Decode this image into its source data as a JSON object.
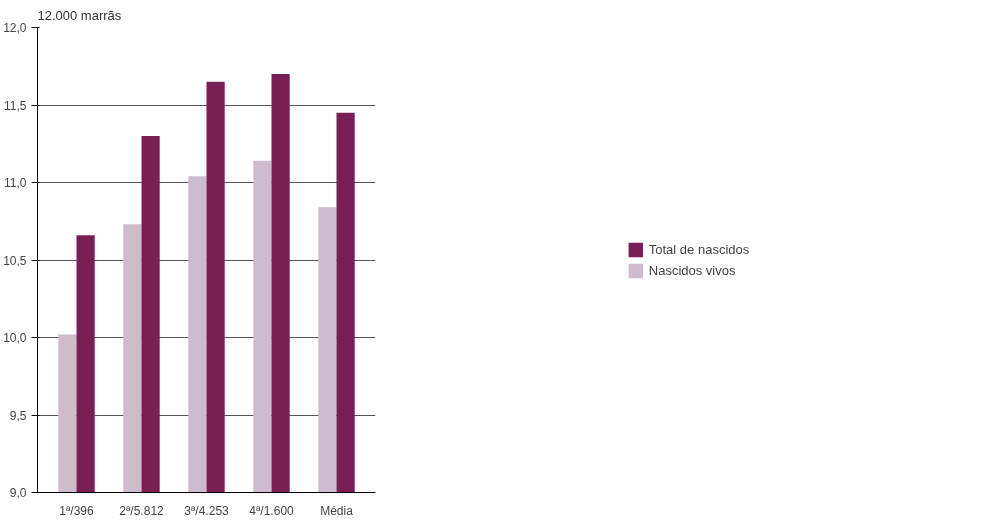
{
  "chart_data": {
    "type": "bar",
    "title": "12.000 marrãs",
    "categories": [
      "1ª/396",
      "2ª/5.812",
      "3ª/4.253",
      "4ª/1.600",
      "Média"
    ],
    "series": [
      {
        "name": "Total de nascidos",
        "color": "#7a1f55",
        "values": [
          10.66,
          11.3,
          11.65,
          11.7,
          11.45
        ]
      },
      {
        "name": "Nascidos vivos",
        "color": "#cdbccb",
        "values": [
          10.02,
          10.73,
          11.04,
          11.14,
          10.84
        ]
      }
    ],
    "ylim": [
      9.0,
      12.0
    ],
    "yticks": [
      {
        "value": 9.0,
        "label": "9,0"
      },
      {
        "value": 9.5,
        "label": "9,5"
      },
      {
        "value": 10.0,
        "label": "10,0"
      },
      {
        "value": 10.5,
        "label": "10,5"
      },
      {
        "value": 11.0,
        "label": "11,0"
      },
      {
        "value": 11.5,
        "label": "11,5"
      },
      {
        "value": 12.0,
        "label": "12,0"
      }
    ],
    "grid": "y",
    "legend": "right"
  }
}
